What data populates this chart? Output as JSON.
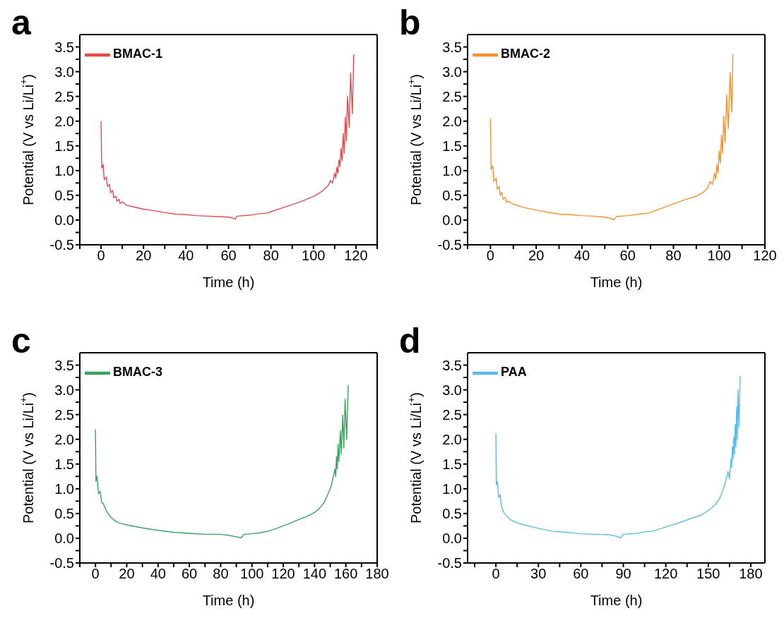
{
  "chart_data": [
    {
      "type": "line",
      "title": "a",
      "xlabel": "Time (h)",
      "ylabel": "Potential (V vs Li/Li$^{+}$)",
      "legend": "top left",
      "xlim": [
        -10,
        130
      ],
      "ylim": [
        -0.5,
        3.75
      ],
      "xticks": [
        {
          "value": -10,
          "label": null
        },
        0,
        {
          "value": 10,
          "label": null
        },
        20,
        {
          "value": 30,
          "label": null
        },
        40,
        {
          "value": 50,
          "label": null
        },
        60,
        {
          "value": 70,
          "label": null
        },
        80,
        {
          "value": 90,
          "label": null
        },
        100,
        {
          "value": 110,
          "label": null
        },
        120,
        {
          "value": 130,
          "label": null
        }
      ],
      "yticks": [
        {
          "value": -0.5,
          "label": "-0.5"
        },
        {
          "value": -0.25,
          "label": null
        },
        {
          "value": 0,
          "label": "0.0"
        },
        {
          "value": 0.25,
          "label": null
        },
        {
          "value": 0.5,
          "label": "0.5"
        },
        {
          "value": 0.75,
          "label": null
        },
        {
          "value": 1,
          "label": "1.0"
        },
        {
          "value": 1.25,
          "label": null
        },
        {
          "value": 1.5,
          "label": "1.5"
        },
        {
          "value": 1.75,
          "label": null
        },
        {
          "value": 2,
          "label": "2.0"
        },
        {
          "value": 2.25,
          "label": null
        },
        {
          "value": 2.5,
          "label": "2.5"
        },
        {
          "value": 2.75,
          "label": null
        },
        {
          "value": 3,
          "label": "3.0"
        },
        {
          "value": 3.25,
          "label": null
        },
        {
          "value": 3.5,
          "label": "3.5"
        }
      ],
      "series": [
        {
          "name": "BMAC-1",
          "color": "#e84a4f",
          "x": [
            0,
            0.3,
            1,
            1.5,
            2.5,
            3,
            4,
            4.5,
            5.5,
            6,
            7,
            7.5,
            8.5,
            9,
            10,
            12,
            15,
            20,
            25,
            30,
            35,
            40,
            45,
            50,
            55,
            60,
            62,
            63,
            64,
            70,
            75,
            78,
            80,
            85,
            90,
            95,
            100,
            103,
            105,
            107,
            108,
            109,
            110,
            110.5,
            111,
            111.5,
            112,
            112.5,
            113,
            113.5,
            114,
            114.5,
            115,
            115.5,
            116,
            116.8,
            117.5,
            118.3,
            119
          ],
          "values": [
            2.0,
            1.05,
            1.12,
            0.82,
            0.87,
            0.68,
            0.72,
            0.55,
            0.6,
            0.45,
            0.48,
            0.38,
            0.42,
            0.33,
            0.37,
            0.3,
            0.27,
            0.22,
            0.19,
            0.15,
            0.12,
            0.11,
            0.09,
            0.08,
            0.07,
            0.06,
            0.04,
            0.02,
            0.08,
            0.1,
            0.13,
            0.14,
            0.17,
            0.24,
            0.31,
            0.39,
            0.48,
            0.55,
            0.62,
            0.7,
            0.8,
            0.75,
            0.95,
            0.85,
            1.07,
            0.95,
            1.22,
            1.08,
            1.45,
            1.2,
            1.75,
            1.35,
            2.08,
            1.6,
            2.5,
            1.87,
            2.97,
            2.15,
            3.35
          ]
        }
      ]
    },
    {
      "type": "line",
      "title": "b",
      "xlabel": "Time (h)",
      "ylabel": "Potential (V vs Li/Li$^{+}$)",
      "legend": "top left",
      "xlim": [
        -10,
        120
      ],
      "ylim": [
        -0.5,
        3.75
      ],
      "xticks": [
        {
          "value": -10,
          "label": null
        },
        0,
        {
          "value": 10,
          "label": null
        },
        20,
        {
          "value": 30,
          "label": null
        },
        40,
        {
          "value": 50,
          "label": null
        },
        60,
        {
          "value": 70,
          "label": null
        },
        80,
        {
          "value": 90,
          "label": null
        },
        100,
        {
          "value": 110,
          "label": null
        },
        120
      ],
      "yticks": [
        {
          "value": -0.5,
          "label": "-0.5"
        },
        {
          "value": -0.25,
          "label": null
        },
        {
          "value": 0,
          "label": "0.0"
        },
        {
          "value": 0.25,
          "label": null
        },
        {
          "value": 0.5,
          "label": "0.5"
        },
        {
          "value": 0.75,
          "label": null
        },
        {
          "value": 1,
          "label": "1.0"
        },
        {
          "value": 1.25,
          "label": null
        },
        {
          "value": 1.5,
          "label": "1.5"
        },
        {
          "value": 1.75,
          "label": null
        },
        {
          "value": 2,
          "label": "2.0"
        },
        {
          "value": 2.25,
          "label": null
        },
        {
          "value": 2.5,
          "label": "2.5"
        },
        {
          "value": 2.75,
          "label": null
        },
        {
          "value": 3,
          "label": "3.0"
        },
        {
          "value": 3.25,
          "label": null
        },
        {
          "value": 3.5,
          "label": "3.5"
        }
      ],
      "series": [
        {
          "name": "BMAC-2",
          "color": "#f5922f",
          "x": [
            0,
            0.3,
            1,
            1.5,
            2.5,
            3,
            3.8,
            4.3,
            5,
            5.5,
            6.5,
            7,
            8,
            10,
            15,
            20,
            25,
            30,
            35,
            40,
            45,
            50,
            53,
            54,
            55,
            60,
            65,
            69,
            75,
            80,
            85,
            90,
            93,
            95,
            96,
            97,
            98,
            98.5,
            99,
            99.5,
            100,
            100.5,
            101,
            101.5,
            102,
            102.6,
            103.3,
            104,
            104.8,
            105.5,
            106
          ],
          "values": [
            2.05,
            1.02,
            1.1,
            0.78,
            0.85,
            0.62,
            0.68,
            0.5,
            0.56,
            0.42,
            0.46,
            0.36,
            0.38,
            0.32,
            0.25,
            0.2,
            0.16,
            0.12,
            0.11,
            0.09,
            0.08,
            0.06,
            0.03,
            0.0,
            0.07,
            0.09,
            0.12,
            0.14,
            0.24,
            0.33,
            0.41,
            0.48,
            0.56,
            0.65,
            0.78,
            0.72,
            0.95,
            0.82,
            1.12,
            0.95,
            1.4,
            1.15,
            1.72,
            1.35,
            2.1,
            1.57,
            2.53,
            1.85,
            2.98,
            2.18,
            3.36
          ]
        }
      ]
    },
    {
      "type": "line",
      "title": "c",
      "xlabel": "Time (h)",
      "ylabel": "Potential (V vs Li/Li$^{+}$)",
      "legend": "top left",
      "xlim": [
        -10,
        180
      ],
      "ylim": [
        -0.5,
        3.75
      ],
      "xticks": [
        {
          "value": -10,
          "label": null
        },
        0,
        {
          "value": 10,
          "label": null
        },
        20,
        {
          "value": 30,
          "label": null
        },
        40,
        {
          "value": 50,
          "label": null
        },
        60,
        {
          "value": 70,
          "label": null
        },
        80,
        {
          "value": 90,
          "label": null
        },
        100,
        {
          "value": 110,
          "label": null
        },
        120,
        {
          "value": 130,
          "label": null
        },
        140,
        {
          "value": 150,
          "label": null
        },
        160,
        {
          "value": 170,
          "label": null
        },
        180
      ],
      "yticks": [
        {
          "value": -0.5,
          "label": "-0.5"
        },
        {
          "value": -0.25,
          "label": null
        },
        {
          "value": 0,
          "label": "0.0"
        },
        {
          "value": 0.25,
          "label": null
        },
        {
          "value": 0.5,
          "label": "0.5"
        },
        {
          "value": 0.75,
          "label": null
        },
        {
          "value": 1,
          "label": "1.0"
        },
        {
          "value": 1.25,
          "label": null
        },
        {
          "value": 1.5,
          "label": "1.5"
        },
        {
          "value": 1.75,
          "label": null
        },
        {
          "value": 2,
          "label": "2.0"
        },
        {
          "value": 2.25,
          "label": null
        },
        {
          "value": 2.5,
          "label": "2.5"
        },
        {
          "value": 2.75,
          "label": null
        },
        {
          "value": 3,
          "label": "3.0"
        },
        {
          "value": 3.25,
          "label": null
        },
        {
          "value": 3.5,
          "label": "3.5"
        }
      ],
      "series": [
        {
          "name": "BMAC-3",
          "color": "#3aa45f",
          "x": [
            0,
            0.3,
            1,
            2,
            3,
            4,
            5,
            7,
            10,
            13,
            16,
            20,
            30,
            40,
            50,
            60,
            70,
            80,
            85,
            90,
            93,
            95,
            100,
            105,
            110,
            115,
            120,
            125,
            130,
            135,
            140,
            143,
            146,
            148,
            150,
            151,
            152,
            153,
            153.5,
            154,
            154.5,
            155,
            155.5,
            156.5,
            157,
            158,
            158.7,
            159.5,
            160.5,
            161.5
          ],
          "values": [
            2.2,
            1.15,
            1.25,
            0.9,
            0.95,
            0.72,
            0.7,
            0.55,
            0.42,
            0.34,
            0.3,
            0.27,
            0.21,
            0.16,
            0.12,
            0.1,
            0.08,
            0.08,
            0.06,
            0.03,
            0.01,
            0.08,
            0.09,
            0.11,
            0.14,
            0.19,
            0.25,
            0.31,
            0.38,
            0.44,
            0.52,
            0.6,
            0.72,
            0.85,
            1.0,
            1.1,
            1.25,
            1.4,
            1.25,
            1.65,
            1.4,
            1.9,
            1.55,
            2.17,
            1.7,
            2.49,
            1.82,
            2.81,
            2.0,
            3.1
          ]
        }
      ]
    },
    {
      "type": "line",
      "title": "d",
      "xlabel": "Time (h)",
      "ylabel": "Potential (V vs Li/Li$^{+}$)",
      "legend": "top left",
      "xlim": [
        -20,
        190
      ],
      "ylim": [
        -0.5,
        3.75
      ],
      "xticks": [
        {
          "value": -15,
          "label": null
        },
        0,
        {
          "value": 15,
          "label": null
        },
        30,
        {
          "value": 45,
          "label": null
        },
        60,
        {
          "value": 75,
          "label": null
        },
        90,
        {
          "value": 105,
          "label": null
        },
        120,
        {
          "value": 135,
          "label": null
        },
        150,
        {
          "value": 165,
          "label": null
        },
        180
      ],
      "yticks": [
        {
          "value": -0.5,
          "label": "-0.5"
        },
        {
          "value": -0.25,
          "label": null
        },
        {
          "value": 0,
          "label": "0.0"
        },
        {
          "value": 0.25,
          "label": null
        },
        {
          "value": 0.5,
          "label": "0.5"
        },
        {
          "value": 0.75,
          "label": null
        },
        {
          "value": 1,
          "label": "1.0"
        },
        {
          "value": 1.25,
          "label": null
        },
        {
          "value": 1.5,
          "label": "1.5"
        },
        {
          "value": 1.75,
          "label": null
        },
        {
          "value": 2,
          "label": "2.0"
        },
        {
          "value": 2.25,
          "label": null
        },
        {
          "value": 2.5,
          "label": "2.5"
        },
        {
          "value": 2.75,
          "label": null
        },
        {
          "value": 3,
          "label": "3.0"
        },
        {
          "value": 3.25,
          "label": null
        },
        {
          "value": 3.5,
          "label": "3.5"
        }
      ],
      "series": [
        {
          "name": "PAA",
          "color": "#5bbcec",
          "x": [
            0,
            0.3,
            1,
            2,
            3,
            4,
            6,
            10,
            15,
            20,
            30,
            40,
            50,
            60,
            70,
            80,
            85,
            88,
            90,
            100,
            105,
            110,
            115,
            120,
            130,
            140,
            145,
            150,
            155,
            158,
            160,
            162,
            164,
            165,
            166,
            166.5,
            167,
            167.5,
            168,
            168.5,
            169,
            169.5,
            170,
            170.5,
            171,
            171.7,
            172.5
          ],
          "values": [
            2.12,
            1.08,
            1.15,
            0.82,
            0.88,
            0.63,
            0.5,
            0.38,
            0.31,
            0.27,
            0.2,
            0.14,
            0.12,
            0.09,
            0.08,
            0.07,
            0.04,
            0.01,
            0.08,
            0.1,
            0.13,
            0.14,
            0.18,
            0.23,
            0.32,
            0.42,
            0.47,
            0.56,
            0.68,
            0.8,
            0.95,
            1.12,
            1.35,
            1.2,
            1.6,
            1.43,
            1.85,
            1.6,
            2.05,
            1.7,
            2.3,
            1.85,
            2.65,
            2.0,
            3.0,
            2.25,
            3.28
          ]
        }
      ]
    }
  ]
}
